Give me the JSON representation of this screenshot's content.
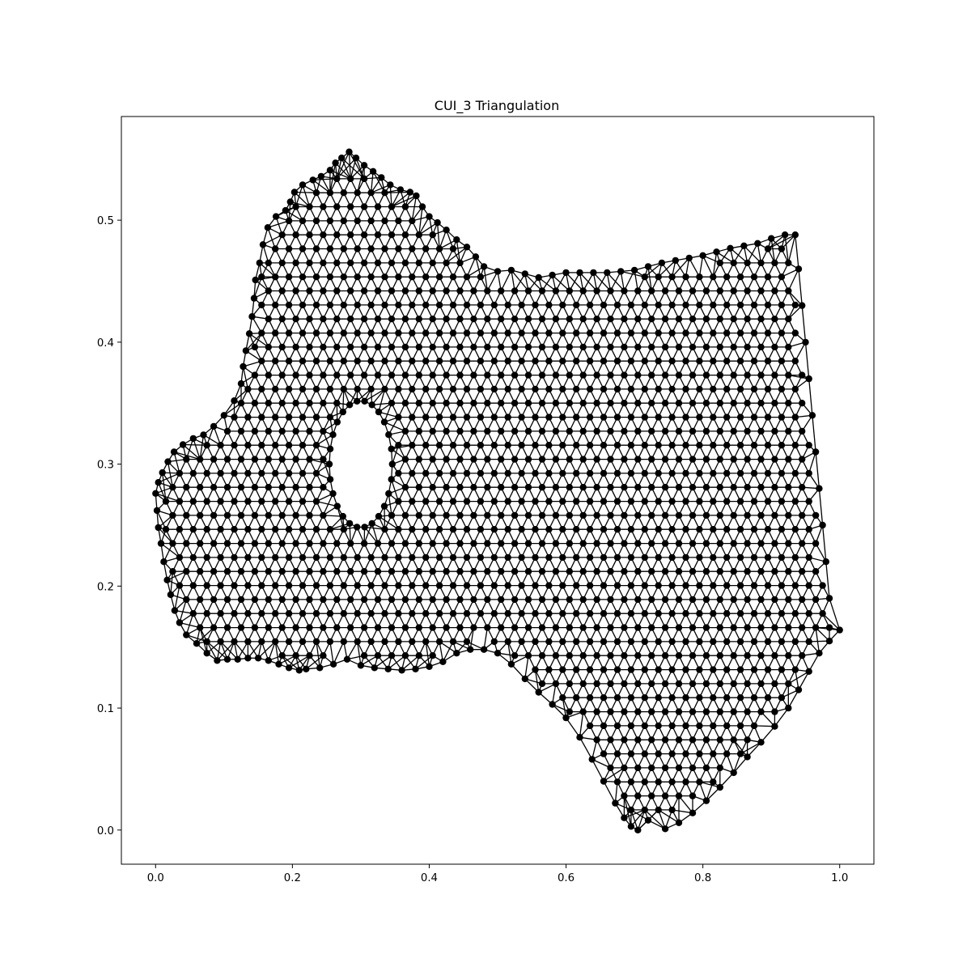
{
  "chart_data": {
    "type": "scatter",
    "title": "CUI_3 Triangulation",
    "xlabel": "",
    "ylabel": "",
    "xlim": [
      -0.05,
      1.05
    ],
    "ylim": [
      -0.028,
      0.585
    ],
    "xticks": [
      0.0,
      0.2,
      0.4,
      0.6,
      0.8,
      1.0
    ],
    "yticks": [
      0.0,
      0.1,
      0.2,
      0.3,
      0.4,
      0.5
    ],
    "xtick_labels": [
      "0.0",
      "0.2",
      "0.4",
      "0.6",
      "0.8",
      "1.0"
    ],
    "ytick_labels": [
      "0.0",
      "0.1",
      "0.2",
      "0.3",
      "0.4",
      "0.5"
    ],
    "grid": false,
    "marker_color": "#000000",
    "edge_color": "#000000",
    "boundary": [
      [
        0.0,
        0.276
      ],
      [
        0.004,
        0.285
      ],
      [
        0.01,
        0.293
      ],
      [
        0.018,
        0.302
      ],
      [
        0.027,
        0.31
      ],
      [
        0.04,
        0.316
      ],
      [
        0.055,
        0.321
      ],
      [
        0.07,
        0.324
      ],
      [
        0.085,
        0.331
      ],
      [
        0.1,
        0.34
      ],
      [
        0.115,
        0.352
      ],
      [
        0.125,
        0.366
      ],
      [
        0.128,
        0.38
      ],
      [
        0.132,
        0.393
      ],
      [
        0.137,
        0.407
      ],
      [
        0.141,
        0.421
      ],
      [
        0.144,
        0.436
      ],
      [
        0.146,
        0.451
      ],
      [
        0.152,
        0.465
      ],
      [
        0.157,
        0.48
      ],
      [
        0.164,
        0.494
      ],
      [
        0.176,
        0.503
      ],
      [
        0.19,
        0.508
      ],
      [
        0.197,
        0.515
      ],
      [
        0.203,
        0.523
      ],
      [
        0.215,
        0.529
      ],
      [
        0.23,
        0.533
      ],
      [
        0.242,
        0.536
      ],
      [
        0.255,
        0.541
      ],
      [
        0.263,
        0.547
      ],
      [
        0.272,
        0.551
      ],
      [
        0.283,
        0.556
      ],
      [
        0.293,
        0.551
      ],
      [
        0.305,
        0.545
      ],
      [
        0.318,
        0.54
      ],
      [
        0.33,
        0.535
      ],
      [
        0.343,
        0.529
      ],
      [
        0.358,
        0.525
      ],
      [
        0.372,
        0.523
      ],
      [
        0.381,
        0.52
      ],
      [
        0.39,
        0.511
      ],
      [
        0.4,
        0.503
      ],
      [
        0.412,
        0.498
      ],
      [
        0.425,
        0.492
      ],
      [
        0.44,
        0.484
      ],
      [
        0.455,
        0.478
      ],
      [
        0.468,
        0.47
      ],
      [
        0.48,
        0.462
      ],
      [
        0.5,
        0.458
      ],
      [
        0.52,
        0.459
      ],
      [
        0.54,
        0.456
      ],
      [
        0.56,
        0.453
      ],
      [
        0.58,
        0.455
      ],
      [
        0.6,
        0.457
      ],
      [
        0.62,
        0.457
      ],
      [
        0.64,
        0.457
      ],
      [
        0.66,
        0.457
      ],
      [
        0.68,
        0.458
      ],
      [
        0.7,
        0.459
      ],
      [
        0.72,
        0.462
      ],
      [
        0.74,
        0.465
      ],
      [
        0.76,
        0.467
      ],
      [
        0.78,
        0.469
      ],
      [
        0.8,
        0.471
      ],
      [
        0.82,
        0.474
      ],
      [
        0.84,
        0.477
      ],
      [
        0.86,
        0.479
      ],
      [
        0.88,
        0.481
      ],
      [
        0.9,
        0.485
      ],
      [
        0.92,
        0.488
      ],
      [
        0.935,
        0.488
      ],
      [
        0.94,
        0.46
      ],
      [
        0.945,
        0.43
      ],
      [
        0.95,
        0.4
      ],
      [
        0.955,
        0.37
      ],
      [
        0.96,
        0.34
      ],
      [
        0.965,
        0.31
      ],
      [
        0.97,
        0.28
      ],
      [
        0.975,
        0.25
      ],
      [
        0.98,
        0.22
      ],
      [
        0.985,
        0.19
      ],
      [
        1.0,
        0.164
      ],
      [
        0.985,
        0.155
      ],
      [
        0.97,
        0.145
      ],
      [
        0.955,
        0.13
      ],
      [
        0.94,
        0.115
      ],
      [
        0.925,
        0.1
      ],
      [
        0.905,
        0.085
      ],
      [
        0.885,
        0.072
      ],
      [
        0.865,
        0.06
      ],
      [
        0.845,
        0.047
      ],
      [
        0.825,
        0.035
      ],
      [
        0.805,
        0.024
      ],
      [
        0.785,
        0.014
      ],
      [
        0.765,
        0.006
      ],
      [
        0.745,
        0.001
      ],
      [
        0.72,
        0.008
      ],
      [
        0.705,
        0.0
      ],
      [
        0.695,
        0.003
      ],
      [
        0.685,
        0.01
      ],
      [
        0.672,
        0.022
      ],
      [
        0.655,
        0.04
      ],
      [
        0.638,
        0.058
      ],
      [
        0.62,
        0.076
      ],
      [
        0.6,
        0.092
      ],
      [
        0.58,
        0.103
      ],
      [
        0.56,
        0.113
      ],
      [
        0.54,
        0.124
      ],
      [
        0.52,
        0.136
      ],
      [
        0.5,
        0.145
      ],
      [
        0.48,
        0.148
      ],
      [
        0.46,
        0.148
      ],
      [
        0.44,
        0.145
      ],
      [
        0.42,
        0.138
      ],
      [
        0.4,
        0.134
      ],
      [
        0.38,
        0.132
      ],
      [
        0.36,
        0.131
      ],
      [
        0.34,
        0.132
      ],
      [
        0.32,
        0.133
      ],
      [
        0.3,
        0.135
      ],
      [
        0.28,
        0.14
      ],
      [
        0.26,
        0.136
      ],
      [
        0.24,
        0.133
      ],
      [
        0.22,
        0.132
      ],
      [
        0.21,
        0.131
      ],
      [
        0.195,
        0.133
      ],
      [
        0.18,
        0.136
      ],
      [
        0.165,
        0.139
      ],
      [
        0.15,
        0.141
      ],
      [
        0.135,
        0.141
      ],
      [
        0.12,
        0.14
      ],
      [
        0.105,
        0.14
      ],
      [
        0.09,
        0.139
      ],
      [
        0.075,
        0.145
      ],
      [
        0.06,
        0.153
      ],
      [
        0.045,
        0.16
      ],
      [
        0.035,
        0.17
      ],
      [
        0.028,
        0.18
      ],
      [
        0.022,
        0.193
      ],
      [
        0.017,
        0.205
      ],
      [
        0.012,
        0.22
      ],
      [
        0.008,
        0.235
      ],
      [
        0.004,
        0.248
      ],
      [
        0.002,
        0.262
      ]
    ],
    "hole": {
      "center": [
        0.3,
        0.3
      ],
      "radius_x": 0.046,
      "radius_y": 0.052
    },
    "mesh_spacing": {
      "dx": 0.02,
      "dy": 0.0115
    }
  }
}
